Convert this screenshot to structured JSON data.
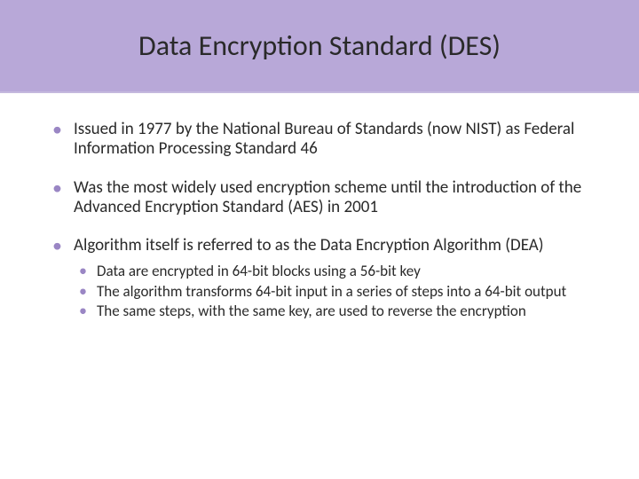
{
  "colors": {
    "header_bg": "#b8a8d8",
    "header_border": "#c4b8de",
    "bullet_color": "#9a86c4",
    "text_color": "#2a2a2a",
    "page_bg": "#ffffff"
  },
  "typography": {
    "title_fontsize": 32,
    "body_fontsize": 19,
    "sub_fontsize": 17,
    "font_family": "Candara"
  },
  "title": "Data Encryption Standard (DES)",
  "bullets": [
    {
      "text": "Issued in 1977 by the National Bureau of Standards (now NIST) as Federal Information Processing Standard 46",
      "sub": []
    },
    {
      "text": "Was the most widely used encryption scheme until the introduction of the Advanced Encryption Standard (AES) in 2001",
      "sub": []
    },
    {
      "text": "Algorithm itself is referred to as the Data Encryption Algorithm (DEA)",
      "sub": [
        "Data are encrypted in 64-bit blocks using a 56-bit key",
        "The algorithm transforms 64-bit input in a series of steps into a 64-bit output",
        "The same steps, with the same key, are used to reverse the encryption"
      ]
    }
  ]
}
